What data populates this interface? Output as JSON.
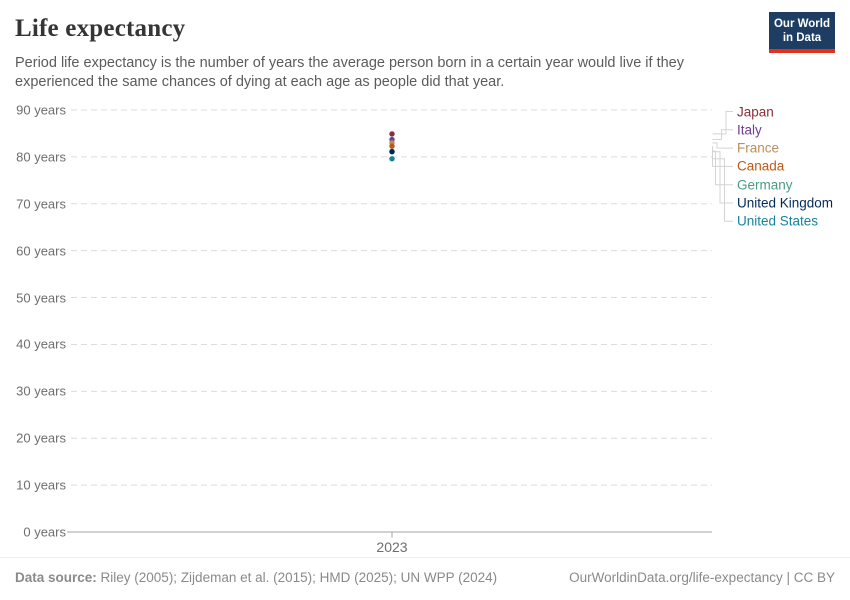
{
  "header": {
    "title": "Life expectancy",
    "subtitle": "Period life expectancy is the number of years the average person born in a certain year would live if they experienced the same chances of dying at each age as people did that year.",
    "logo": {
      "line1": "Our World",
      "line2": "in Data",
      "bg_color": "#1d3d63",
      "accent_color": "#e0321f"
    }
  },
  "chart_data": {
    "type": "scatter",
    "title": "Life expectancy",
    "x": [
      2023
    ],
    "x_tick_labels": [
      "2023"
    ],
    "series": [
      {
        "name": "Japan",
        "values": [
          84.9
        ],
        "color": "#883039"
      },
      {
        "name": "Italy",
        "values": [
          83.7
        ],
        "color": "#6D3E91"
      },
      {
        "name": "France",
        "values": [
          83.0
        ],
        "color": "#BC8E5A"
      },
      {
        "name": "Canada",
        "values": [
          82.3
        ],
        "color": "#C05917"
      },
      {
        "name": "Germany",
        "values": [
          81.2
        ],
        "color": "#4C9C85"
      },
      {
        "name": "United Kingdom",
        "values": [
          81.1
        ],
        "color": "#00295B"
      },
      {
        "name": "United States",
        "values": [
          79.6
        ],
        "color": "#18829C"
      }
    ],
    "ylim": [
      0,
      90
    ],
    "y_ticks": [
      0,
      10,
      20,
      30,
      40,
      50,
      60,
      70,
      80,
      90
    ],
    "y_tick_labels": [
      "0 years",
      "10 years",
      "20 years",
      "30 years",
      "40 years",
      "50 years",
      "60 years",
      "70 years",
      "80 years",
      "90 years"
    ],
    "grid": "horizontal-dashed",
    "gridline_color": "#dcdcdc",
    "axis_color": "#a3a3a3",
    "connector_color": "#d4d4d4",
    "legend_position": "right"
  },
  "footer": {
    "datasource_label": "Data source:",
    "datasource_text": " Riley (2005); Zijdeman et al. (2015); HMD (2025); UN WPP (2024)",
    "attribution": "OurWorldinData.org/life-expectancy | CC BY"
  }
}
